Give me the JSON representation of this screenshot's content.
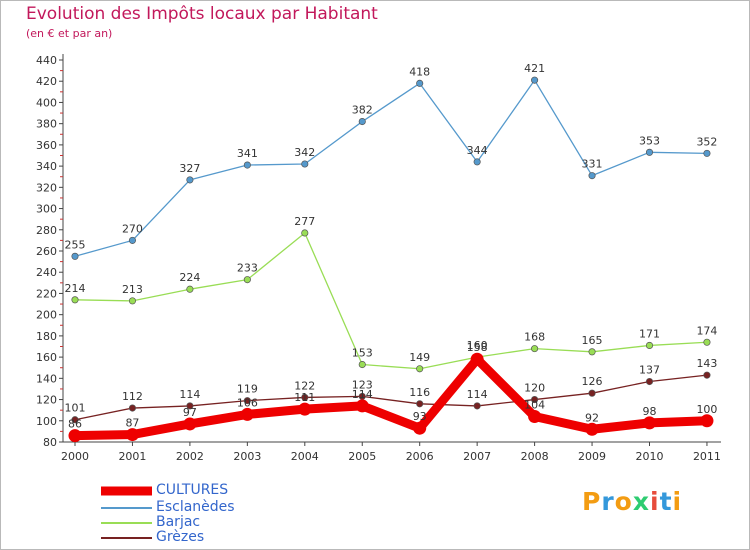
{
  "title": "Evolution des Impôts locaux par Habitant",
  "subtitle": "(en € et par an)",
  "logo": {
    "text": "Proxiti",
    "colors": [
      "#f39c12",
      "#3498db",
      "#f39c12",
      "#2ecc71",
      "#e74c3c",
      "#3498db",
      "#f39c12"
    ]
  },
  "chart_data": {
    "type": "line",
    "x": [
      "2000",
      "2001",
      "2002",
      "2003",
      "2004",
      "2005",
      "2006",
      "2007",
      "2008",
      "2009",
      "2010",
      "2011"
    ],
    "ylim": [
      80,
      440
    ],
    "yticks": [
      80,
      100,
      120,
      140,
      160,
      180,
      200,
      220,
      240,
      260,
      280,
      300,
      320,
      340,
      360,
      380,
      400,
      420,
      440
    ],
    "grid": false,
    "legend_position": "bottom-left",
    "series": [
      {
        "name": "CULTURES",
        "color": "#ee0000",
        "values": [
          86,
          87,
          97,
          106,
          111,
          114,
          93,
          158,
          104,
          92,
          98,
          100
        ]
      },
      {
        "name": "Esclanèdes",
        "color": "#5599cc",
        "values": [
          255,
          270,
          327,
          341,
          342,
          382,
          418,
          344,
          421,
          331,
          353,
          352
        ]
      },
      {
        "name": "Barjac",
        "color": "#99dd55",
        "values": [
          214,
          213,
          224,
          233,
          277,
          153,
          149,
          160,
          168,
          165,
          171,
          174
        ]
      },
      {
        "name": "Grèzes",
        "color": "#772222",
        "values": [
          101,
          112,
          114,
          119,
          122,
          123,
          116,
          114,
          120,
          126,
          137,
          143
        ]
      }
    ]
  }
}
